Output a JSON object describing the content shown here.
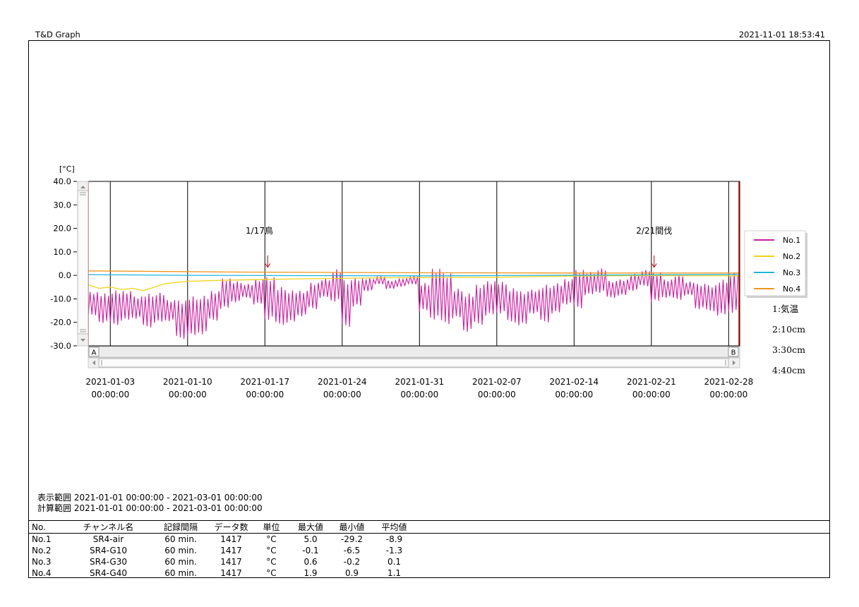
{
  "app": {
    "title": "T&D Graph",
    "timestamp": "2021-11-01 18:53:41"
  },
  "ranges": {
    "display": "表示範囲 2021-01-01 00:00:00 - 2021-03-01 00:00:00",
    "calc": "計算範囲 2021-01-01 00:00:00 - 2021-03-01 00:00:00"
  },
  "chart_data": {
    "type": "line",
    "ylabel": "[°C]",
    "ylim": [
      -30,
      40
    ],
    "y_ticks": [
      "40.0",
      "30.0",
      "20.0",
      "10.0",
      "0.0",
      "-10.0",
      "-20.0",
      "-30.0"
    ],
    "xlim": [
      "2021-01-01 00:00:00",
      "2021-03-01 00:00:00"
    ],
    "x_ticks": [
      {
        "date": "2021-01-03",
        "time": "00:00:00"
      },
      {
        "date": "2021-01-10",
        "time": "00:00:00"
      },
      {
        "date": "2021-01-17",
        "time": "00:00:00"
      },
      {
        "date": "2021-01-24",
        "time": "00:00:00"
      },
      {
        "date": "2021-01-31",
        "time": "00:00:00"
      },
      {
        "date": "2021-02-07",
        "time": "00:00:00"
      },
      {
        "date": "2021-02-14",
        "time": "00:00:00"
      },
      {
        "date": "2021-02-21",
        "time": "00:00:00"
      },
      {
        "date": "2021-02-28",
        "time": "00:00:00"
      }
    ],
    "grid": "vertical",
    "legend_position": "right",
    "series": [
      {
        "name": "No.1",
        "color": "#cc1fa0",
        "x": [
          "2021-01-01",
          "2021-01-02",
          "2021-01-03",
          "2021-01-04",
          "2021-01-05",
          "2021-01-06",
          "2021-01-07",
          "2021-01-08",
          "2021-01-09",
          "2021-01-10",
          "2021-01-11",
          "2021-01-12",
          "2021-01-13",
          "2021-01-14",
          "2021-01-15",
          "2021-01-16",
          "2021-01-17",
          "2021-01-18",
          "2021-01-19",
          "2021-01-20",
          "2021-01-21",
          "2021-01-22",
          "2021-01-23",
          "2021-01-24",
          "2021-01-25",
          "2021-01-26",
          "2021-01-27",
          "2021-01-28",
          "2021-01-29",
          "2021-01-30",
          "2021-01-31",
          "2021-02-01",
          "2021-02-02",
          "2021-02-03",
          "2021-02-04",
          "2021-02-05",
          "2021-02-06",
          "2021-02-07",
          "2021-02-08",
          "2021-02-09",
          "2021-02-10",
          "2021-02-11",
          "2021-02-12",
          "2021-02-13",
          "2021-02-14",
          "2021-02-15",
          "2021-02-16",
          "2021-02-17",
          "2021-02-18",
          "2021-02-19",
          "2021-02-20",
          "2021-02-21",
          "2021-02-22",
          "2021-02-23",
          "2021-02-24",
          "2021-02-25",
          "2021-02-26",
          "2021-02-27",
          "2021-02-28",
          "2021-03-01"
        ],
        "min": [
          -18,
          -21,
          -22,
          -20,
          -19,
          -23,
          -21,
          -20,
          -28,
          -27,
          -26,
          -20,
          -15,
          -12,
          -10,
          -13,
          -20,
          -22,
          -21,
          -18,
          -15,
          -10,
          -12,
          -23,
          -14,
          -7,
          -4,
          -6,
          -5,
          -4,
          -16,
          -20,
          -22,
          -19,
          -25,
          -22,
          -18,
          -17,
          -21,
          -22,
          -17,
          -21,
          -17,
          -13,
          -15,
          -9,
          -8,
          -10,
          -9,
          -7,
          -5,
          -12,
          -10,
          -11,
          -9,
          -15,
          -16,
          -18,
          -17,
          -12
        ],
        "max": [
          -6,
          -7,
          -5,
          -6,
          -8,
          -7,
          -6,
          -10,
          -9,
          -8,
          -7,
          -6,
          0,
          -2,
          -3,
          -1,
          1,
          -4,
          -5,
          -6,
          -2,
          -1,
          4,
          -1,
          0,
          -1,
          0,
          -2,
          -1,
          0,
          -2,
          4,
          3,
          -5,
          -6,
          -3,
          -1,
          -2,
          -4,
          -6,
          -5,
          -3,
          -2,
          -1,
          4,
          2,
          4,
          -2,
          -1,
          1,
          3,
          2,
          -1,
          1,
          -2,
          -3,
          -3,
          -1,
          3,
          -2
        ]
      },
      {
        "name": "No.2",
        "color": "#f2d21b",
        "x": [
          "2021-01-01",
          "2021-01-02",
          "2021-01-03",
          "2021-01-04",
          "2021-01-05",
          "2021-01-06",
          "2021-01-08",
          "2021-01-10",
          "2021-01-14",
          "2021-01-20",
          "2021-01-28",
          "2021-02-07",
          "2021-02-14",
          "2021-02-20",
          "2021-03-01"
        ],
        "values": [
          -4,
          -5.5,
          -5,
          -6,
          -5.5,
          -6.5,
          -3.5,
          -2.5,
          -2,
          -1.5,
          -1,
          -0.8,
          -0.3,
          -0.1,
          -0.2
        ]
      },
      {
        "name": "No.3",
        "color": "#1fb4dc",
        "x": [
          "2021-01-01",
          "2021-01-10",
          "2021-01-20",
          "2021-02-01",
          "2021-02-15",
          "2021-03-01"
        ],
        "values": [
          0.3,
          0,
          -0.1,
          -0.2,
          0.1,
          0.4
        ]
      },
      {
        "name": "No.4",
        "color": "#f0961e",
        "x": [
          "2021-01-01",
          "2021-01-15",
          "2021-02-01",
          "2021-02-15",
          "2021-03-01"
        ],
        "values": [
          1.9,
          1.4,
          1.1,
          1.0,
          1.0
        ]
      }
    ],
    "annotations": [
      {
        "text": "1/17鳥",
        "x": "2021-01-16 12:00:00",
        "y": 19
      },
      {
        "text": "2/21間伐",
        "x": "2021-02-21 06:00:00",
        "y": 19
      }
    ],
    "arrows": [
      {
        "x": "2021-01-17 06:00:00",
        "y_from": 8.5,
        "y_to": 3.5
      },
      {
        "x": "2021-02-21 06:00:00",
        "y_from": 8.5,
        "y_to": 3.5
      }
    ],
    "cursors": [
      "A",
      "B"
    ],
    "channel_notes": [
      "1:気温",
      "2:10cm",
      "3:30cm",
      "4:40cm"
    ]
  },
  "table": {
    "headers": [
      "No.",
      "チャンネル名",
      "記録間隔",
      "データ数",
      "単位",
      "最大値",
      "最小値",
      "平均値"
    ],
    "rows": [
      [
        "No.1",
        "SR4-air",
        "60 min.",
        "1417",
        "°C",
        "5.0",
        "-29.2",
        "-8.9"
      ],
      [
        "No.2",
        "SR4-G10",
        "60 min.",
        "1417",
        "°C",
        "-0.1",
        "-6.5",
        "-1.3"
      ],
      [
        "No.3",
        "SR4-G30",
        "60 min.",
        "1417",
        "°C",
        "0.6",
        "-0.2",
        "0.1"
      ],
      [
        "No.4",
        "SR4-G40",
        "60 min.",
        "1417",
        "°C",
        "1.9",
        "0.9",
        "1.1"
      ]
    ]
  }
}
